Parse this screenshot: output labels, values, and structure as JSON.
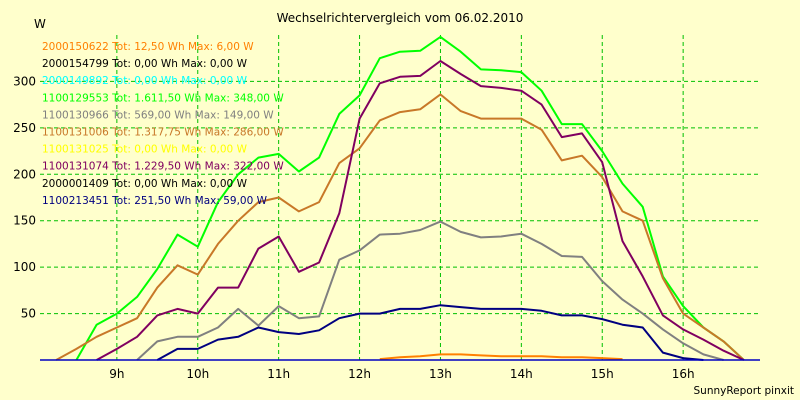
{
  "chart_data": {
    "type": "line",
    "title": "Wechselrichtervergleich vom 06.02.2010",
    "ylabel": "W",
    "xlabel": "",
    "footer": "SunnyReport pinxit",
    "ylim": [
      0,
      350
    ],
    "xlim": [
      8.05,
      16.95
    ],
    "grid": true,
    "legend_position": "top-left",
    "y_ticks": [
      {
        "value": 50,
        "label": "50"
      },
      {
        "value": 100,
        "label": "100"
      },
      {
        "value": 150,
        "label": "150"
      },
      {
        "value": 200,
        "label": "200"
      },
      {
        "value": 250,
        "label": "250"
      },
      {
        "value": 300,
        "label": "300"
      }
    ],
    "x_ticks": [
      {
        "value": 9,
        "label": "9h"
      },
      {
        "value": 10,
        "label": "10h"
      },
      {
        "value": 11,
        "label": "11h"
      },
      {
        "value": 12,
        "label": "12h"
      },
      {
        "value": 13,
        "label": "13h"
      },
      {
        "value": 14,
        "label": "14h"
      },
      {
        "value": 15,
        "label": "15h"
      },
      {
        "value": 16,
        "label": "16h"
      }
    ],
    "series": [
      {
        "name": "2000150622 Tot: 12,50 Wh Max: 6,00 W",
        "color": "#ff8000",
        "x": [
          12.25,
          12.5,
          12.75,
          13.0,
          13.25,
          13.5,
          13.75,
          14.0,
          14.25,
          14.5,
          14.75,
          15.0,
          15.25
        ],
        "y": [
          1,
          3,
          4,
          6,
          6,
          5,
          4,
          4,
          4,
          3,
          3,
          2,
          1
        ]
      },
      {
        "name": "2000154799 Tot: 0,00 Wh Max: 0,00 W",
        "color": "#000000",
        "x": [],
        "y": []
      },
      {
        "name": "2000149892 Tot: 0,00 Wh Max: 0,00 W",
        "color": "#00ffff",
        "x": [],
        "y": []
      },
      {
        "name": "1100129553 Tot: 1.611,50 Wh Max: 348,00 W",
        "color": "#00ff00",
        "x": [
          8.5,
          8.75,
          9.0,
          9.25,
          9.5,
          9.75,
          10.0,
          10.25,
          10.5,
          10.75,
          11.0,
          11.25,
          11.5,
          11.75,
          12.0,
          12.25,
          12.5,
          12.75,
          13.0,
          13.25,
          13.5,
          13.75,
          14.0,
          14.25,
          14.5,
          14.75,
          15.0,
          15.25,
          15.5,
          15.75,
          16.0,
          16.25,
          16.5,
          16.75
        ],
        "y": [
          0,
          38,
          50,
          68,
          98,
          135,
          122,
          170,
          200,
          218,
          222,
          203,
          218,
          265,
          285,
          325,
          332,
          333,
          348,
          332,
          313,
          312,
          310,
          290,
          254,
          254,
          225,
          190,
          165,
          90,
          58,
          35,
          20,
          0
        ]
      },
      {
        "name": "1100130966 Tot: 569,00 Wh Max: 149,00 W",
        "color": "#808080",
        "x": [
          9.25,
          9.5,
          9.75,
          10.0,
          10.25,
          10.5,
          10.75,
          11.0,
          11.25,
          11.5,
          11.75,
          12.0,
          12.25,
          12.5,
          12.75,
          13.0,
          13.25,
          13.5,
          13.75,
          14.0,
          14.25,
          14.5,
          14.75,
          15.0,
          15.25,
          15.5,
          15.75,
          16.0,
          16.25,
          16.5
        ],
        "y": [
          0,
          20,
          25,
          25,
          35,
          55,
          37,
          58,
          45,
          47,
          108,
          118,
          135,
          136,
          140,
          149,
          138,
          132,
          133,
          136,
          125,
          112,
          111,
          85,
          65,
          50,
          33,
          18,
          6,
          0
        ]
      },
      {
        "name": "1100131006 Tot: 1.317,75 Wh Max: 286,00 W",
        "color": "#c87828",
        "x": [
          8.25,
          8.5,
          8.75,
          9.0,
          9.25,
          9.5,
          9.75,
          10.0,
          10.25,
          10.5,
          10.75,
          11.0,
          11.25,
          11.5,
          11.75,
          12.0,
          12.25,
          12.5,
          12.75,
          13.0,
          13.25,
          13.5,
          13.75,
          14.0,
          14.25,
          14.5,
          14.75,
          15.0,
          15.25,
          15.5,
          15.75,
          16.0,
          16.25,
          16.5,
          16.75
        ],
        "y": [
          0,
          12,
          25,
          35,
          45,
          78,
          102,
          92,
          125,
          150,
          170,
          175,
          160,
          170,
          212,
          228,
          258,
          267,
          270,
          286,
          268,
          260,
          260,
          260,
          248,
          215,
          220,
          197,
          160,
          150,
          88,
          50,
          35,
          20,
          0
        ]
      },
      {
        "name": "1100131025 Tot: 0,00 Wh Max: 0,00 W",
        "color": "#ffff00",
        "x": [],
        "y": []
      },
      {
        "name": "1100131074 Tot: 1.229,50 Wh Max: 322,00 W",
        "color": "#800060",
        "x": [
          8.75,
          9.0,
          9.25,
          9.5,
          9.75,
          10.0,
          10.25,
          10.5,
          10.75,
          11.0,
          11.25,
          11.5,
          11.75,
          12.0,
          12.25,
          12.5,
          12.75,
          13.0,
          13.25,
          13.5,
          13.75,
          14.0,
          14.25,
          14.5,
          14.75,
          15.0,
          15.25,
          15.5,
          15.75,
          16.0,
          16.25,
          16.5,
          16.75
        ],
        "y": [
          0,
          12,
          25,
          48,
          55,
          50,
          78,
          78,
          120,
          133,
          95,
          105,
          158,
          260,
          298,
          305,
          306,
          322,
          308,
          295,
          293,
          290,
          275,
          240,
          244,
          213,
          128,
          90,
          48,
          33,
          22,
          10,
          0
        ]
      },
      {
        "name": "2000001409 Tot: 0,00 Wh Max: 0,00 W",
        "color": "#000000",
        "x": [],
        "y": []
      },
      {
        "name": "1100213451 Tot: 251,50 Wh Max: 59,00 W",
        "color": "#000080",
        "x": [
          9.5,
          9.75,
          10.0,
          10.25,
          10.5,
          10.75,
          11.0,
          11.25,
          11.5,
          11.75,
          12.0,
          12.25,
          12.5,
          12.75,
          13.0,
          13.25,
          13.5,
          13.75,
          14.0,
          14.25,
          14.5,
          14.75,
          15.0,
          15.25,
          15.5,
          15.75,
          16.0,
          16.25
        ],
        "y": [
          0,
          12,
          12,
          22,
          25,
          35,
          30,
          28,
          32,
          45,
          50,
          50,
          55,
          55,
          59,
          57,
          55,
          55,
          55,
          53,
          48,
          48,
          44,
          38,
          35,
          8,
          2,
          0
        ]
      }
    ]
  }
}
